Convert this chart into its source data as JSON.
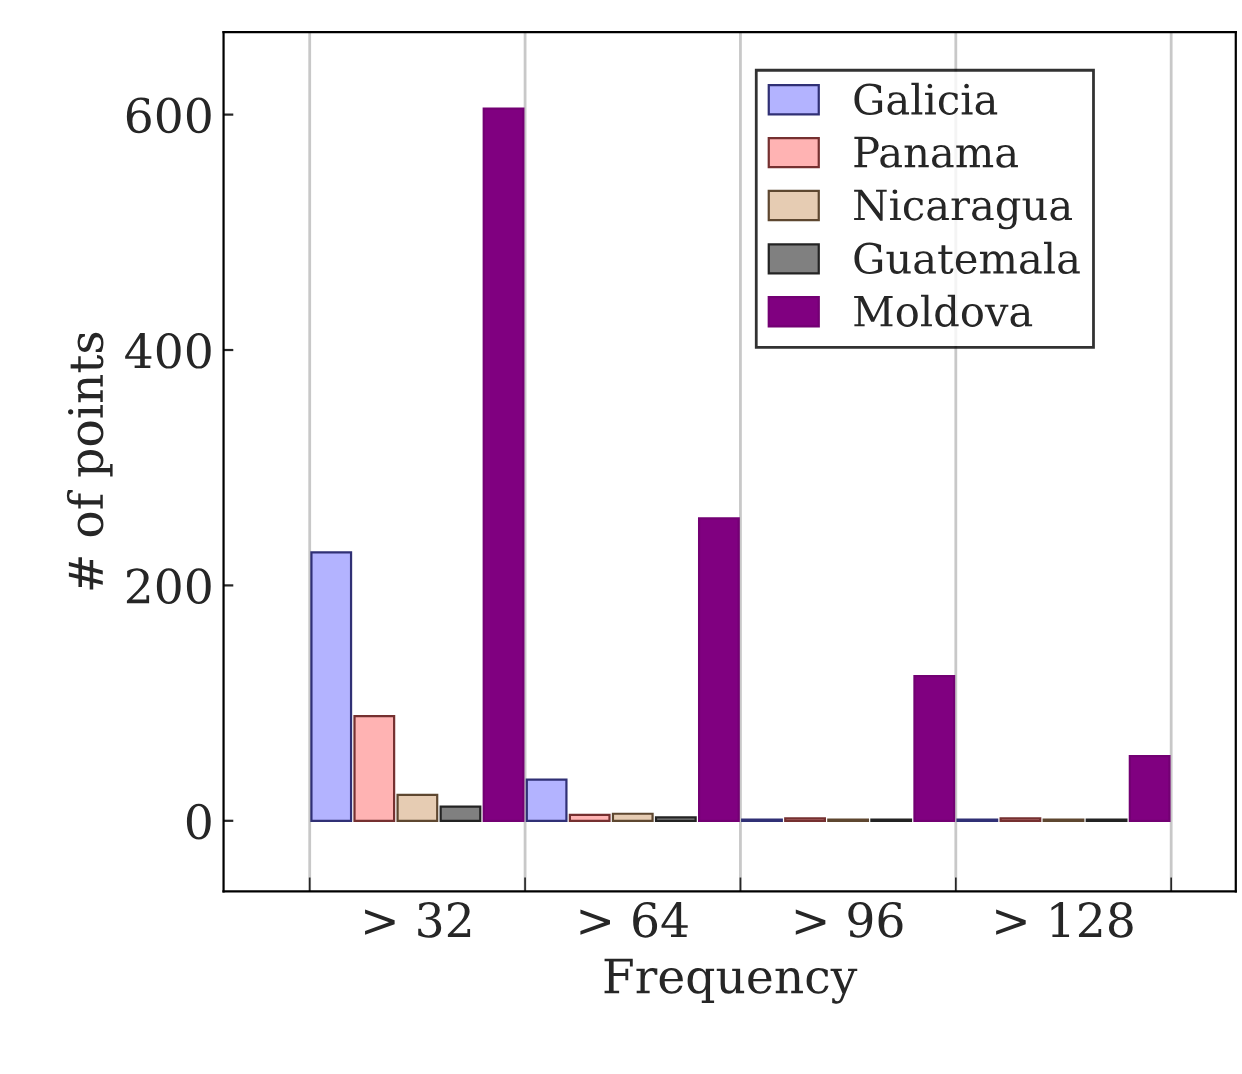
{
  "chart_data": {
    "type": "bar",
    "xlabel": "Frequency",
    "ylabel": "# of points",
    "categories": [
      "> 32",
      "> 64",
      "> 96",
      "> 128"
    ],
    "series": [
      {
        "name": "Galicia",
        "color": "#b3b3ff",
        "values": [
          228,
          35,
          1,
          1
        ]
      },
      {
        "name": "Panama",
        "color": "#ffb3b3",
        "values": [
          89,
          5,
          2,
          2
        ]
      },
      {
        "name": "Nicaragua",
        "color": "#e6ccb3",
        "values": [
          22,
          6,
          1,
          1
        ]
      },
      {
        "name": "Guatemala",
        "color": "#808080",
        "values": [
          12,
          3,
          1,
          1
        ]
      },
      {
        "name": "Moldova",
        "color": "#800080",
        "values": [
          605,
          257,
          123,
          55
        ]
      }
    ],
    "ylim": [
      -60,
      670
    ],
    "yticks": [
      0,
      200,
      400,
      600
    ],
    "grid": "x",
    "legend": "top right"
  }
}
